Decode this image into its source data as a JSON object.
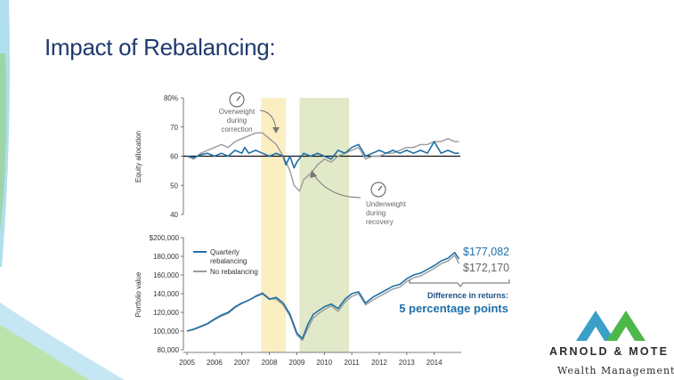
{
  "slide": {
    "title": "Impact of Rebalancing:"
  },
  "brand": {
    "name": "ARNOLD & MOTE",
    "tagline": "Wealth Management",
    "colors": [
      "#3aa0c8",
      "#4cb84a"
    ]
  },
  "colors": {
    "quarterly": "#1f6fa8",
    "no_rebalancing": "#9a9a9a",
    "bear_band": "#fbeec3",
    "recovery_band": "#e1e9c8",
    "target_line": "#111111"
  },
  "chart_data": [
    {
      "type": "line",
      "ylabel": "Equity allocation",
      "ylim": [
        40,
        80
      ],
      "yticks": [
        "80%",
        "70",
        "60",
        "50",
        "40"
      ],
      "target": 60,
      "bands": [
        {
          "from": 2007.7,
          "to": 2008.6
        },
        {
          "from": 2009.1,
          "to": 2010.9
        }
      ],
      "annotations": [
        {
          "text": [
            "Overweight",
            "during",
            "correction"
          ],
          "icon": "gauge-icon"
        },
        {
          "text": [
            "Underweight",
            "during",
            "recovery"
          ],
          "icon": "gauge-icon"
        }
      ],
      "series": [
        {
          "name": "Quarterly rebalancing",
          "x": [
            2005.0,
            2005.25,
            2005.5,
            2005.75,
            2006.0,
            2006.25,
            2006.5,
            2006.75,
            2007.0,
            2007.1,
            2007.25,
            2007.5,
            2007.75,
            2008.0,
            2008.25,
            2008.5,
            2008.6,
            2008.75,
            2008.9,
            2009.0,
            2009.25,
            2009.5,
            2009.75,
            2010.0,
            2010.25,
            2010.5,
            2010.75,
            2011.0,
            2011.25,
            2011.5,
            2011.75,
            2012.0,
            2012.25,
            2012.5,
            2012.75,
            2013.0,
            2013.25,
            2013.5,
            2013.75,
            2014.0,
            2014.25,
            2014.5,
            2014.75,
            2014.9
          ],
          "values": [
            60,
            59.5,
            60.5,
            61,
            60,
            61,
            60,
            62,
            61,
            63,
            61,
            62,
            61,
            60,
            61,
            60,
            57,
            60,
            56,
            58,
            61,
            60,
            61,
            60,
            59,
            62,
            61,
            63,
            64,
            60,
            61,
            62,
            61,
            62,
            61,
            62,
            61,
            62,
            61,
            65,
            61,
            62,
            61,
            61
          ]
        },
        {
          "name": "No rebalancing",
          "x": [
            2005.0,
            2005.25,
            2005.5,
            2005.75,
            2006.0,
            2006.25,
            2006.5,
            2006.75,
            2007.0,
            2007.25,
            2007.5,
            2007.75,
            2008.0,
            2008.25,
            2008.5,
            2008.75,
            2008.9,
            2009.1,
            2009.25,
            2009.5,
            2009.75,
            2010.0,
            2010.25,
            2010.5,
            2010.75,
            2011.0,
            2011.25,
            2011.5,
            2011.75,
            2012.0,
            2012.25,
            2012.5,
            2012.75,
            2013.0,
            2013.25,
            2013.5,
            2013.75,
            2014.0,
            2014.25,
            2014.5,
            2014.75,
            2014.9
          ],
          "values": [
            60,
            59,
            61,
            62,
            63,
            64,
            63,
            65,
            66,
            67,
            68,
            68,
            66,
            64,
            60,
            55,
            50,
            48,
            52,
            54,
            57,
            59,
            58,
            60,
            61,
            62,
            63,
            59,
            60,
            60,
            61,
            61,
            62,
            63,
            63,
            64,
            64,
            65,
            65,
            66,
            65,
            65
          ]
        }
      ]
    },
    {
      "type": "line",
      "ylabel": "Portfolio value",
      "ylim": [
        80000,
        200000
      ],
      "yticks": [
        "$200,000",
        "180,000",
        "160,000",
        "140,000",
        "120,000",
        "100,000",
        "80,000"
      ],
      "xticks": [
        "2005",
        "2006",
        "2007",
        "2008",
        "2009",
        "2010",
        "2011",
        "2012",
        "2013",
        "2014"
      ],
      "legend": {
        "placement": "top-left",
        "entries": [
          "Quarterly rebalancing",
          "No rebalancing"
        ]
      },
      "end_labels": [
        "$177,082",
        "$172,170"
      ],
      "callout": {
        "title": "Difference in returns:",
        "value": "5 percentage points"
      },
      "series": [
        {
          "name": "Quarterly rebalancing",
          "x": [
            2005.0,
            2005.25,
            2005.5,
            2005.75,
            2006.0,
            2006.25,
            2006.5,
            2006.75,
            2007.0,
            2007.25,
            2007.5,
            2007.75,
            2008.0,
            2008.25,
            2008.5,
            2008.75,
            2009.0,
            2009.2,
            2009.4,
            2009.6,
            2009.8,
            2010.0,
            2010.25,
            2010.5,
            2010.75,
            2011.0,
            2011.25,
            2011.5,
            2011.75,
            2012.0,
            2012.25,
            2012.5,
            2012.75,
            2013.0,
            2013.25,
            2013.5,
            2013.75,
            2014.0,
            2014.25,
            2014.5,
            2014.75,
            2014.9
          ],
          "values": [
            100000,
            102000,
            105000,
            108000,
            113000,
            117000,
            120000,
            126000,
            130000,
            133000,
            137000,
            140000,
            134000,
            136000,
            130000,
            118000,
            98000,
            92000,
            107000,
            118000,
            122000,
            126000,
            129000,
            124000,
            134000,
            140000,
            142000,
            130000,
            136000,
            140000,
            144000,
            148000,
            150000,
            156000,
            160000,
            162000,
            166000,
            170000,
            175000,
            178000,
            184000,
            177082
          ]
        },
        {
          "name": "No rebalancing",
          "x": [
            2005.0,
            2005.25,
            2005.5,
            2005.75,
            2006.0,
            2006.25,
            2006.5,
            2006.75,
            2007.0,
            2007.25,
            2007.5,
            2007.75,
            2008.0,
            2008.25,
            2008.5,
            2008.75,
            2009.0,
            2009.2,
            2009.4,
            2009.6,
            2009.8,
            2010.0,
            2010.25,
            2010.5,
            2010.75,
            2011.0,
            2011.25,
            2011.5,
            2011.75,
            2012.0,
            2012.25,
            2012.5,
            2012.75,
            2013.0,
            2013.25,
            2013.5,
            2013.75,
            2014.0,
            2014.25,
            2014.5,
            2014.75,
            2014.9
          ],
          "values": [
            100000,
            101500,
            104500,
            107500,
            112000,
            116000,
            119000,
            125000,
            129500,
            133000,
            137500,
            141000,
            135000,
            134000,
            128000,
            116000,
            96000,
            90000,
            103000,
            114000,
            119000,
            123000,
            127000,
            121000,
            131000,
            137000,
            140000,
            128000,
            133000,
            137000,
            141000,
            145000,
            147000,
            153000,
            157000,
            159000,
            163000,
            167000,
            172000,
            175000,
            181000,
            172170
          ]
        }
      ]
    }
  ]
}
